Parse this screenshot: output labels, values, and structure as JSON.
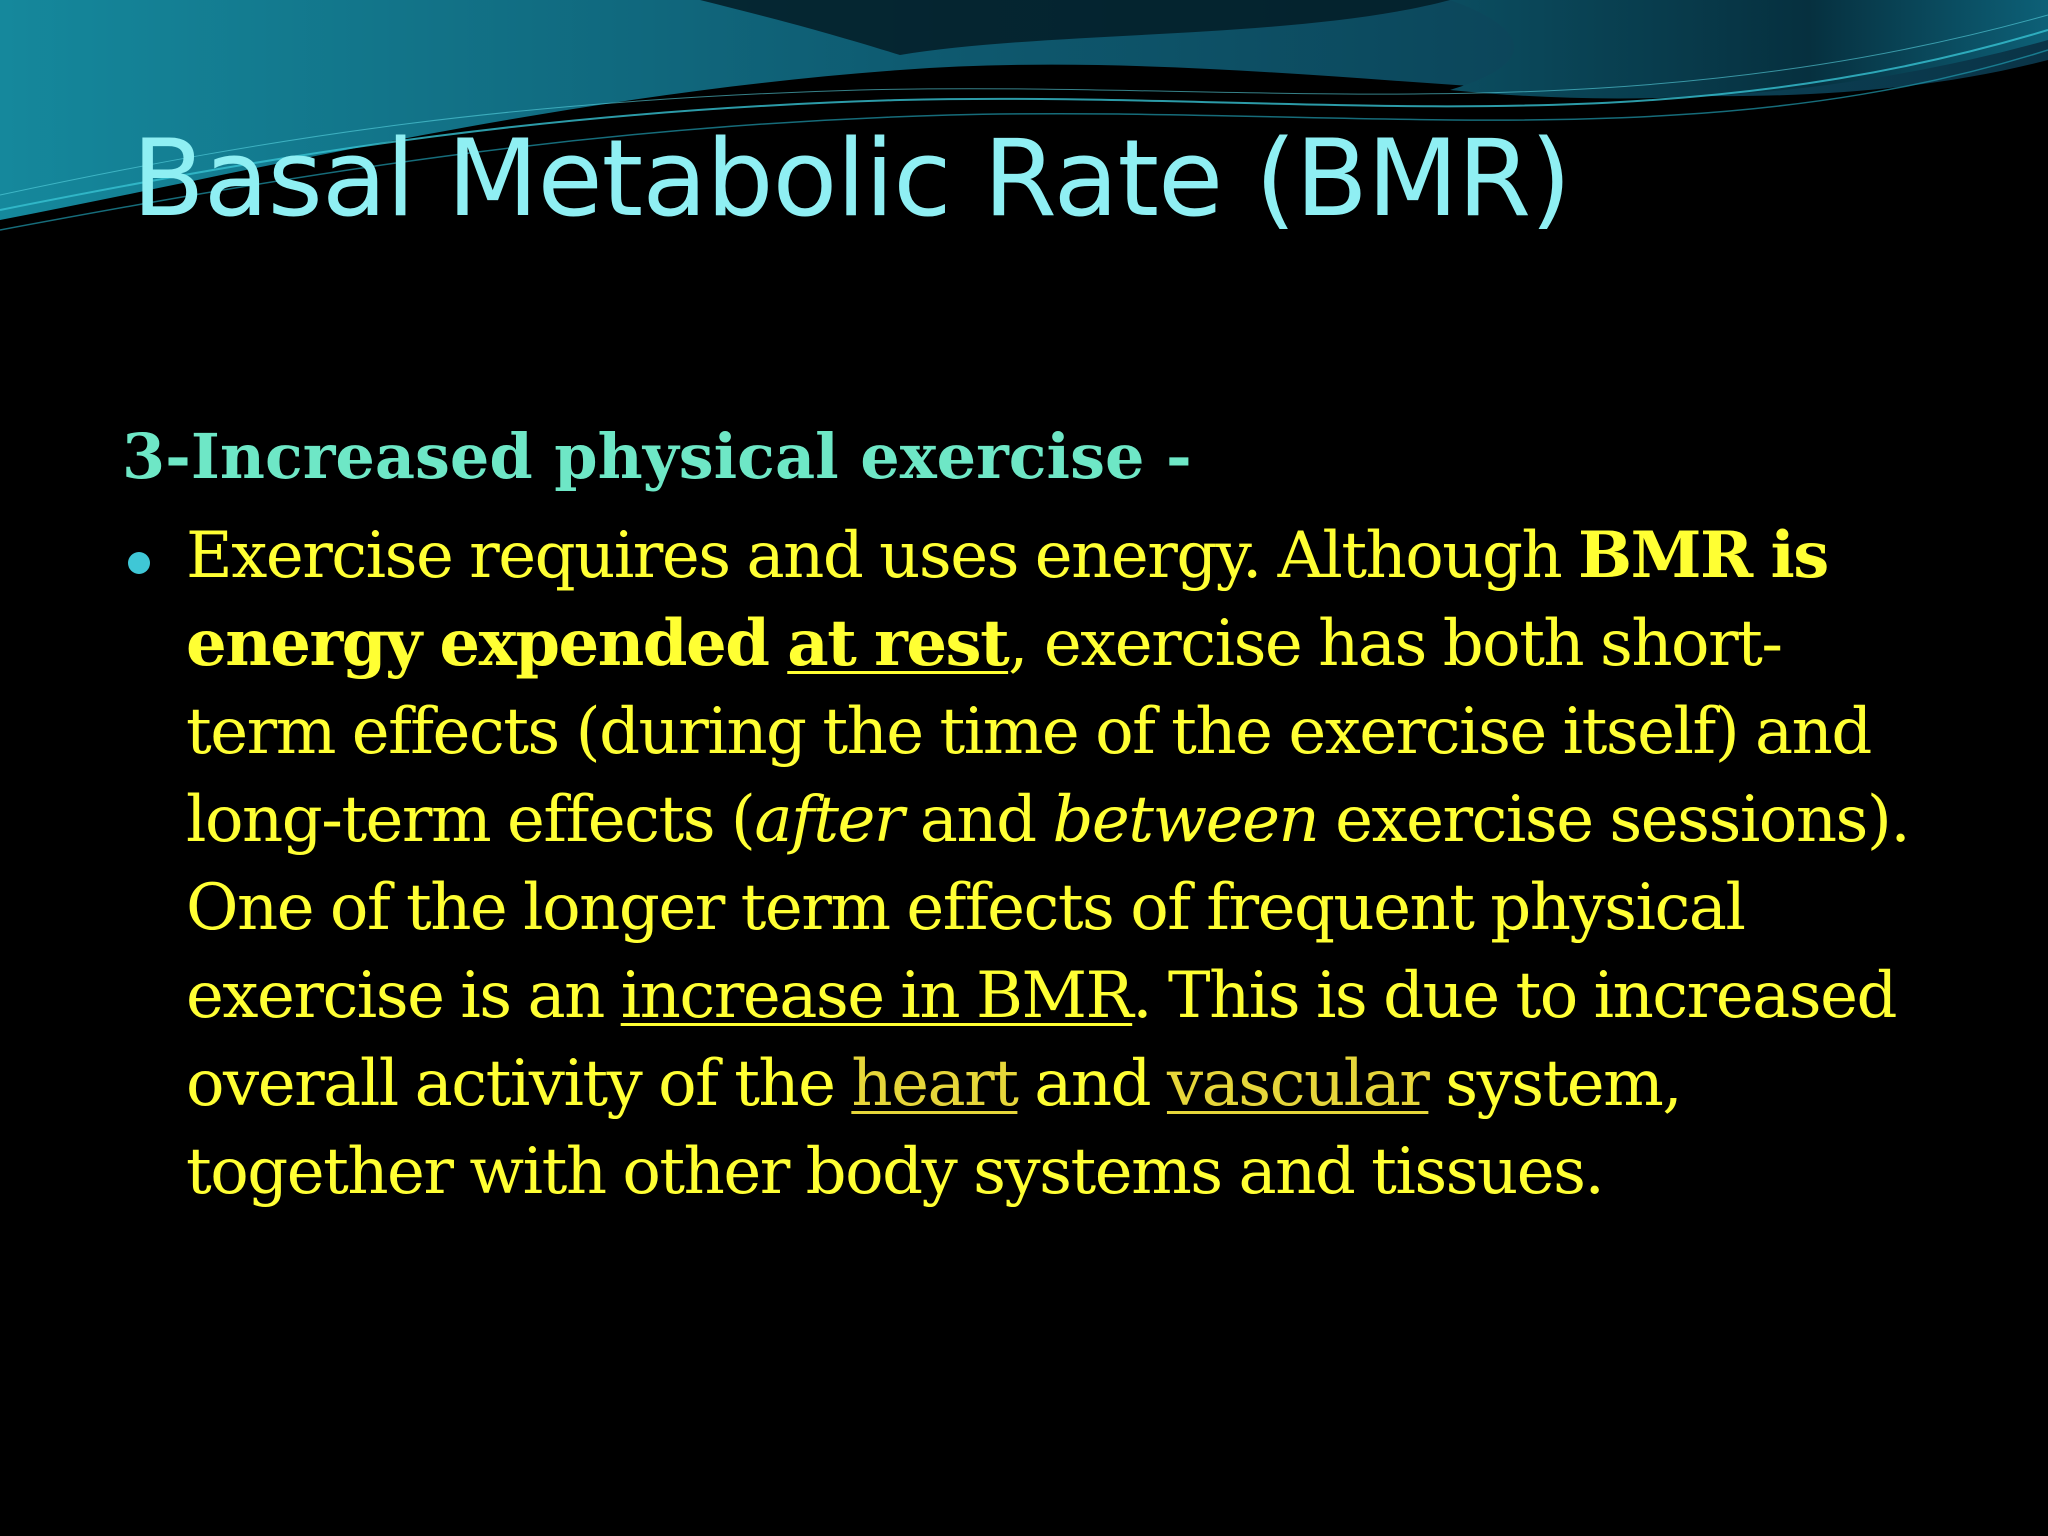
{
  "colors": {
    "background": "#000000",
    "title": "#8FEFF3",
    "subheading": "#6EE7C6",
    "body_text": "#FFFF33",
    "link_text": "#E6D63A",
    "bullet": "#3FC7D6",
    "wave_dark": "#0B3C4C",
    "wave_mid": "#14788F",
    "wave_light": "#2BB0C4"
  },
  "slide": {
    "title": "Basal Metabolic Rate (BMR)",
    "subheading": "3-Increased physical exercise -",
    "bullet": {
      "icon": "bullet-dot-icon",
      "lines": {
        "l1_a": "Exercise requires and uses energy. Although ",
        "l1_b": "BMR is",
        "l2_a": "energy expended ",
        "l2_b": "at rest",
        "l2_c": ", exercise has both short-",
        "l3": "term effects (during the time of the exercise itself) and",
        "l4_a": "long-term effects (",
        "l4_b": "after",
        "l4_c": " and ",
        "l4_d": "between",
        "l4_e": " exercise sessions).",
        "l5": "One of the longer term effects of frequent physical",
        "l6_a": "exercise is an ",
        "l6_b": "increase in BMR",
        "l6_c": ". This is due to increased",
        "l7_a": "overall activity of the ",
        "l7_b": "heart",
        "l7_c": " and ",
        "l7_d": "vascular",
        "l7_e": " system,",
        "l8": "together with other body systems and tissues."
      }
    }
  }
}
